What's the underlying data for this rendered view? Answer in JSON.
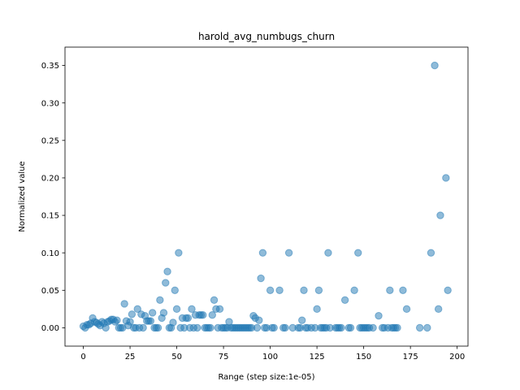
{
  "chart_data": {
    "type": "scatter",
    "title": "harold_avg_numbugs_churn",
    "xlabel": "Range (step size:1e-05)",
    "ylabel": "Normalized value",
    "xlim": [
      -9.8,
      205.8
    ],
    "ylim": [
      -0.0245,
      0.3745
    ],
    "xticks": [
      0,
      25,
      50,
      75,
      100,
      125,
      150,
      175,
      200
    ],
    "yticks": [
      0.0,
      0.05,
      0.1,
      0.15,
      0.2,
      0.25,
      0.3,
      0.35
    ],
    "xtick_labels": [
      "0",
      "25",
      "50",
      "75",
      "100",
      "125",
      "150",
      "175",
      "200"
    ],
    "ytick_labels": [
      "0.00",
      "0.05",
      "0.10",
      "0.15",
      "0.20",
      "0.25",
      "0.30",
      "0.35"
    ],
    "grid": false,
    "marker_color": "#1f77b4",
    "marker_alpha": 0.5,
    "points": [
      [
        0,
        0.002
      ],
      [
        1,
        0.0
      ],
      [
        2,
        0.004
      ],
      [
        3,
        0.004
      ],
      [
        4,
        0.006
      ],
      [
        5,
        0.013
      ],
      [
        6,
        0.008
      ],
      [
        7,
        0.007
      ],
      [
        8,
        0.005
      ],
      [
        9,
        0.003
      ],
      [
        10,
        0.008
      ],
      [
        11,
        0.006
      ],
      [
        12,
        0.0
      ],
      [
        13,
        0.008
      ],
      [
        14,
        0.009
      ],
      [
        15,
        0.011
      ],
      [
        16,
        0.011
      ],
      [
        17,
        0.008
      ],
      [
        18,
        0.01
      ],
      [
        19,
        0.0
      ],
      [
        20,
        0.0
      ],
      [
        21,
        0.0
      ],
      [
        22,
        0.032
      ],
      [
        23,
        0.009
      ],
      [
        24,
        0.003
      ],
      [
        25,
        0.008
      ],
      [
        26,
        0.018
      ],
      [
        27,
        0.0
      ],
      [
        28,
        0.0
      ],
      [
        29,
        0.025
      ],
      [
        30,
        0.0
      ],
      [
        31,
        0.018
      ],
      [
        32,
        0.0
      ],
      [
        33,
        0.016
      ],
      [
        34,
        0.009
      ],
      [
        35,
        0.009
      ],
      [
        36,
        0.009
      ],
      [
        37,
        0.02
      ],
      [
        38,
        0.0
      ],
      [
        39,
        0.0
      ],
      [
        40,
        0.0
      ],
      [
        41,
        0.037
      ],
      [
        42,
        0.013
      ],
      [
        43,
        0.02
      ],
      [
        44,
        0.06
      ],
      [
        45,
        0.075
      ],
      [
        46,
        0.0
      ],
      [
        47,
        0.0
      ],
      [
        48,
        0.007
      ],
      [
        49,
        0.05
      ],
      [
        50,
        0.025
      ],
      [
        51,
        0.1
      ],
      [
        52,
        0.0
      ],
      [
        53,
        0.013
      ],
      [
        54,
        0.0
      ],
      [
        55,
        0.013
      ],
      [
        56,
        0.013
      ],
      [
        57,
        0.0
      ],
      [
        58,
        0.025
      ],
      [
        59,
        0.0
      ],
      [
        60,
        0.017
      ],
      [
        61,
        0.0
      ],
      [
        62,
        0.017
      ],
      [
        63,
        0.017
      ],
      [
        64,
        0.017
      ],
      [
        65,
        0.0
      ],
      [
        66,
        0.0
      ],
      [
        67,
        0.0
      ],
      [
        68,
        0.0
      ],
      [
        69,
        0.017
      ],
      [
        70,
        0.037
      ],
      [
        71,
        0.025
      ],
      [
        72,
        0.0
      ],
      [
        73,
        0.025
      ],
      [
        74,
        0.0
      ],
      [
        75,
        0.0
      ],
      [
        76,
        0.0
      ],
      [
        77,
        0.0
      ],
      [
        78,
        0.008
      ],
      [
        79,
        0.0
      ],
      [
        80,
        0.0
      ],
      [
        81,
        0.0
      ],
      [
        82,
        0.0
      ],
      [
        83,
        0.0
      ],
      [
        84,
        0.0
      ],
      [
        85,
        0.0
      ],
      [
        86,
        0.0
      ],
      [
        87,
        0.0
      ],
      [
        88,
        0.0
      ],
      [
        89,
        0.0
      ],
      [
        90,
        0.0
      ],
      [
        91,
        0.016
      ],
      [
        92,
        0.013
      ],
      [
        93,
        0.0
      ],
      [
        94,
        0.01
      ],
      [
        95,
        0.066
      ],
      [
        96,
        0.1
      ],
      [
        97,
        0.0
      ],
      [
        98,
        0.0
      ],
      [
        100,
        0.05
      ],
      [
        101,
        0.0
      ],
      [
        102,
        0.0
      ],
      [
        105,
        0.05
      ],
      [
        107,
        0.0
      ],
      [
        108,
        0.0
      ],
      [
        110,
        0.1
      ],
      [
        112,
        0.0
      ],
      [
        115,
        0.0
      ],
      [
        116,
        0.0
      ],
      [
        117,
        0.01
      ],
      [
        118,
        0.05
      ],
      [
        119,
        0.0
      ],
      [
        120,
        0.0
      ],
      [
        122,
        0.0
      ],
      [
        124,
        0.0
      ],
      [
        125,
        0.025
      ],
      [
        126,
        0.05
      ],
      [
        127,
        0.0
      ],
      [
        128,
        0.0
      ],
      [
        129,
        0.0
      ],
      [
        130,
        0.0
      ],
      [
        131,
        0.1
      ],
      [
        132,
        0.0
      ],
      [
        135,
        0.0
      ],
      [
        136,
        0.0
      ],
      [
        137,
        0.0
      ],
      [
        138,
        0.0
      ],
      [
        140,
        0.037
      ],
      [
        142,
        0.0
      ],
      [
        143,
        0.0
      ],
      [
        145,
        0.05
      ],
      [
        147,
        0.1
      ],
      [
        148,
        0.0
      ],
      [
        149,
        0.0
      ],
      [
        150,
        0.0
      ],
      [
        151,
        0.0
      ],
      [
        152,
        0.0
      ],
      [
        153,
        0.0
      ],
      [
        155,
        0.0
      ],
      [
        158,
        0.016
      ],
      [
        160,
        0.0
      ],
      [
        161,
        0.0
      ],
      [
        163,
        0.0
      ],
      [
        164,
        0.05
      ],
      [
        165,
        0.0
      ],
      [
        166,
        0.0
      ],
      [
        167,
        0.0
      ],
      [
        168,
        0.0
      ],
      [
        171,
        0.05
      ],
      [
        173,
        0.025
      ],
      [
        180,
        0.0
      ],
      [
        184,
        0.0
      ],
      [
        186,
        0.1
      ],
      [
        188,
        0.35
      ],
      [
        190,
        0.025
      ],
      [
        191,
        0.15
      ],
      [
        194,
        0.2
      ],
      [
        195,
        0.05
      ]
    ]
  }
}
